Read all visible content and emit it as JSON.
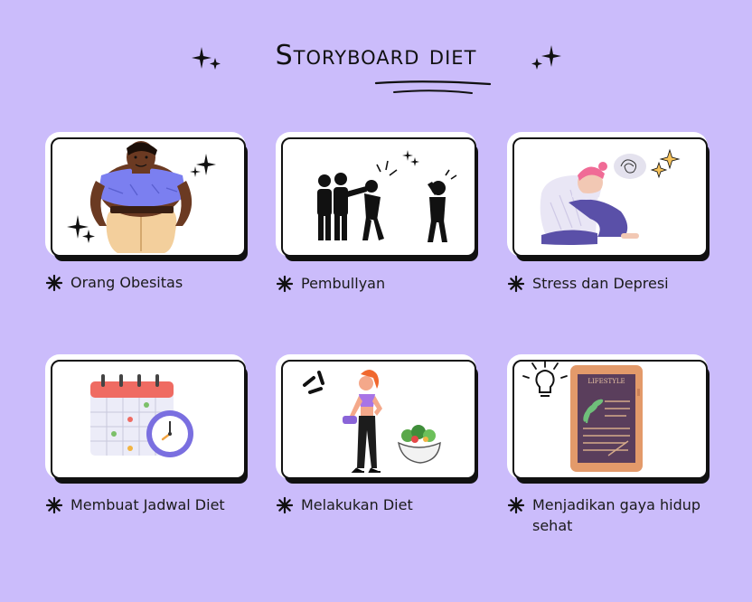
{
  "title": "Storyboard diet",
  "cards": [
    {
      "caption": "Orang Obesitas",
      "icon": "obese-woman-illustration"
    },
    {
      "caption": "Pembullyan",
      "icon": "bullying-pictogram"
    },
    {
      "caption": "Stress dan Depresi",
      "icon": "stressed-person-illustration"
    },
    {
      "caption": "Membuat Jadwal Diet",
      "icon": "calendar-clock-illustration"
    },
    {
      "caption": "Melakukan Diet",
      "icon": "fitness-woman-salad-illustration"
    },
    {
      "caption": "Menjadikan gaya hidup sehat",
      "icon": "lifestyle-tablet-illustration"
    }
  ],
  "tablet_label": "LIFESTYLE",
  "colors": {
    "background": "#cbbcfb",
    "card": "#ffffff",
    "ink": "#111111"
  }
}
